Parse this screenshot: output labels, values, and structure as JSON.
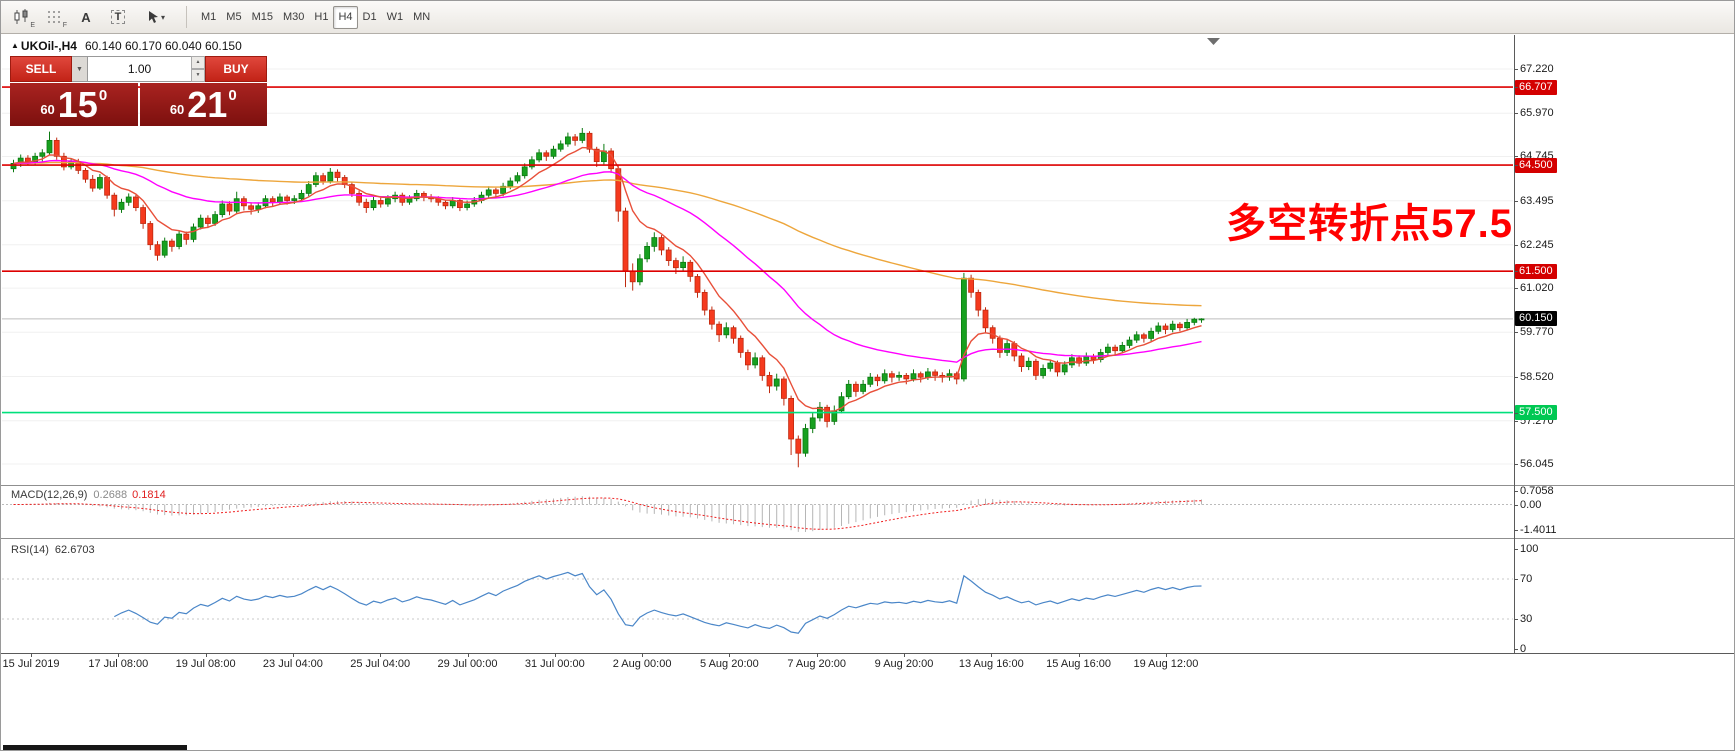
{
  "toolbar": {
    "icon_subs": [
      "E",
      "F"
    ],
    "icon_labels": {
      "text_a": "A",
      "text_t": "T",
      "caret": "▾"
    },
    "timeframes": [
      {
        "label": "M1",
        "active": false
      },
      {
        "label": "M5",
        "active": false
      },
      {
        "label": "M15",
        "active": false
      },
      {
        "label": "M30",
        "active": false
      },
      {
        "label": "H1",
        "active": false
      },
      {
        "label": "H4",
        "active": true
      },
      {
        "label": "D1",
        "active": false
      },
      {
        "label": "W1",
        "active": false
      },
      {
        "label": "MN",
        "active": false
      }
    ]
  },
  "header": {
    "marker": "▲",
    "symbol": "UKOil-,H4",
    "ohlc": "60.140 60.170 60.040 60.150"
  },
  "trade_panel": {
    "sell_label": "SELL",
    "buy_label": "BUY",
    "volume": "1.00",
    "dropdown_glyph": "▼",
    "spin_up": "▲",
    "spin_down": "▼",
    "sell_price": {
      "small": "60",
      "big": "15",
      "sup": "0"
    },
    "buy_price": {
      "small": "60",
      "big": "21",
      "sup": "0"
    }
  },
  "annotation": {
    "text": "多空转折点57.5",
    "color": "#ff0000"
  },
  "chart_data": {
    "type": "candlestick",
    "symbol": "UKOil-",
    "timeframe": "H4",
    "last_ohlc": {
      "open": 60.14,
      "high": 60.17,
      "low": 60.04,
      "close": 60.15
    },
    "y_axis_labels": [
      "67.220",
      "65.970",
      "64.745",
      "63.495",
      "62.245",
      "61.020",
      "59.770",
      "58.520",
      "57.270",
      "56.045"
    ],
    "price_lines": [
      {
        "value": 66.707,
        "label": "66.707",
        "color": "#dd0000",
        "badge": "#d40000"
      },
      {
        "value": 64.5,
        "label": "64.500",
        "color": "#dd0000",
        "badge": "#d40000"
      },
      {
        "value": 61.5,
        "label": "61.500",
        "color": "#dd0000",
        "badge": "#d40000"
      },
      {
        "value": 57.5,
        "label": "57.500",
        "color": "#00e07c",
        "badge": "#00c853"
      }
    ],
    "current_price": {
      "value": 60.15,
      "label": "60.150",
      "line_color": "#bdbdbd",
      "badge": "#000000"
    },
    "x_labels": [
      "15 Jul 2019",
      "17 Jul 08:00",
      "19 Jul 08:00",
      "23 Jul 04:00",
      "25 Jul 04:00",
      "29 Jul 00:00",
      "31 Jul 00:00",
      "2 Aug 00:00",
      "5 Aug 20:00",
      "7 Aug 20:00",
      "9 Aug 20:00",
      "13 Aug 16:00",
      "15 Aug 16:00",
      "19 Aug 12:00"
    ],
    "moving_averages": [
      {
        "period": 120,
        "color": "#eda63c"
      },
      {
        "period": 34,
        "color": "#ff00ff"
      },
      {
        "period": 8,
        "color": "#e8503a"
      }
    ],
    "candle_colors": {
      "up": "#17a01f",
      "up_stroke": "#0b7a11",
      "down": "#f53a1e",
      "down_stroke": "#bf2a10"
    },
    "macd": {
      "label": "MACD(12,26,9)",
      "value_main": "0.2688",
      "value_signal": "0.1814",
      "params": [
        12,
        26,
        9
      ],
      "axis_labels": [
        {
          "value": 0.7058,
          "label": "0.7058"
        },
        {
          "value": 0,
          "label": "0.00"
        },
        {
          "value": -1.4011,
          "label": "-1.4011"
        }
      ],
      "histogram_color": "#b6b6b6",
      "signal_color": "#f01e1e"
    },
    "rsi": {
      "label": "RSI(14)",
      "value": "62.6703",
      "period": 14,
      "axis_labels": [
        {
          "value": 100,
          "label": "100"
        },
        {
          "value": 70,
          "label": "70"
        },
        {
          "value": 30,
          "label": "30"
        },
        {
          "value": 0,
          "label": "0"
        }
      ],
      "levels": [
        70,
        30
      ],
      "color": "#4a86c8"
    },
    "candles": [
      [
        64.4,
        64.65,
        64.3,
        64.55
      ],
      [
        64.55,
        64.8,
        64.45,
        64.7
      ],
      [
        64.7,
        64.78,
        64.5,
        64.6
      ],
      [
        64.6,
        64.85,
        64.52,
        64.75
      ],
      [
        64.75,
        64.95,
        64.6,
        64.85
      ],
      [
        64.85,
        65.45,
        64.8,
        65.2
      ],
      [
        65.2,
        65.28,
        64.65,
        64.75
      ],
      [
        64.75,
        64.85,
        64.35,
        64.45
      ],
      [
        64.45,
        64.7,
        64.38,
        64.6
      ],
      [
        64.6,
        64.68,
        64.25,
        64.35
      ],
      [
        64.35,
        64.42,
        64.0,
        64.1
      ],
      [
        64.1,
        64.22,
        63.75,
        63.85
      ],
      [
        63.85,
        64.25,
        63.8,
        64.15
      ],
      [
        64.15,
        64.2,
        63.55,
        63.65
      ],
      [
        63.65,
        63.72,
        63.05,
        63.25
      ],
      [
        63.25,
        63.55,
        63.15,
        63.45
      ],
      [
        63.45,
        63.7,
        63.35,
        63.6
      ],
      [
        63.6,
        63.66,
        63.2,
        63.3
      ],
      [
        63.3,
        63.38,
        62.7,
        62.85
      ],
      [
        62.85,
        62.92,
        62.1,
        62.25
      ],
      [
        62.25,
        62.35,
        61.8,
        61.95
      ],
      [
        61.95,
        62.45,
        61.88,
        62.35
      ],
      [
        62.35,
        62.42,
        62.05,
        62.2
      ],
      [
        62.2,
        62.65,
        62.12,
        62.55
      ],
      [
        62.55,
        62.62,
        62.25,
        62.4
      ],
      [
        62.4,
        62.85,
        62.32,
        62.75
      ],
      [
        62.75,
        63.1,
        62.68,
        63.0
      ],
      [
        63.0,
        63.08,
        62.72,
        62.85
      ],
      [
        62.85,
        63.2,
        62.78,
        63.1
      ],
      [
        63.1,
        63.5,
        63.02,
        63.4
      ],
      [
        63.4,
        63.48,
        63.08,
        63.2
      ],
      [
        63.2,
        63.75,
        63.12,
        63.55
      ],
      [
        63.55,
        63.62,
        63.22,
        63.35
      ],
      [
        63.35,
        63.45,
        63.1,
        63.25
      ],
      [
        63.25,
        63.45,
        63.15,
        63.35
      ],
      [
        63.35,
        63.65,
        63.28,
        63.55
      ],
      [
        63.55,
        63.62,
        63.32,
        63.45
      ],
      [
        63.45,
        63.7,
        63.38,
        63.6
      ],
      [
        63.6,
        63.66,
        63.38,
        63.5
      ],
      [
        63.5,
        63.65,
        63.4,
        63.55
      ],
      [
        63.55,
        63.8,
        63.48,
        63.7
      ],
      [
        63.7,
        64.05,
        63.62,
        63.95
      ],
      [
        63.95,
        64.3,
        63.88,
        64.2
      ],
      [
        64.2,
        64.28,
        63.95,
        64.05
      ],
      [
        64.05,
        64.42,
        63.98,
        64.3
      ],
      [
        64.3,
        64.38,
        64.02,
        64.15
      ],
      [
        64.15,
        64.22,
        63.85,
        63.95
      ],
      [
        63.95,
        64.02,
        63.6,
        63.7
      ],
      [
        63.7,
        63.78,
        63.35,
        63.45
      ],
      [
        63.45,
        63.55,
        63.15,
        63.3
      ],
      [
        63.3,
        63.6,
        63.22,
        63.5
      ],
      [
        63.5,
        63.58,
        63.3,
        63.4
      ],
      [
        63.4,
        63.65,
        63.32,
        63.55
      ],
      [
        63.55,
        63.75,
        63.45,
        63.65
      ],
      [
        63.65,
        63.72,
        63.35,
        63.45
      ],
      [
        63.45,
        63.65,
        63.38,
        63.55
      ],
      [
        63.55,
        63.8,
        63.48,
        63.7
      ],
      [
        63.7,
        63.76,
        63.48,
        63.6
      ],
      [
        63.6,
        63.68,
        63.45,
        63.55
      ],
      [
        63.55,
        63.62,
        63.35,
        63.45
      ],
      [
        63.45,
        63.52,
        63.25,
        63.35
      ],
      [
        63.35,
        63.6,
        63.28,
        63.5
      ],
      [
        63.5,
        63.56,
        63.2,
        63.3
      ],
      [
        63.3,
        63.5,
        63.22,
        63.4
      ],
      [
        63.4,
        63.6,
        63.32,
        63.5
      ],
      [
        63.5,
        63.75,
        63.42,
        63.65
      ],
      [
        63.65,
        63.9,
        63.58,
        63.8
      ],
      [
        63.8,
        63.86,
        63.58,
        63.7
      ],
      [
        63.7,
        64.0,
        63.62,
        63.9
      ],
      [
        63.9,
        64.15,
        63.82,
        64.05
      ],
      [
        64.05,
        64.3,
        63.98,
        64.2
      ],
      [
        64.2,
        64.55,
        64.12,
        64.45
      ],
      [
        64.45,
        64.75,
        64.38,
        64.65
      ],
      [
        64.65,
        64.95,
        64.58,
        64.85
      ],
      [
        64.85,
        64.92,
        64.62,
        64.75
      ],
      [
        64.75,
        65.05,
        64.68,
        64.95
      ],
      [
        64.95,
        65.2,
        64.88,
        65.1
      ],
      [
        65.1,
        65.42,
        65.02,
        65.3
      ],
      [
        65.3,
        65.38,
        65.05,
        65.2
      ],
      [
        65.2,
        65.55,
        65.12,
        65.4
      ],
      [
        65.4,
        65.46,
        64.85,
        64.95
      ],
      [
        64.95,
        65.02,
        64.45,
        64.6
      ],
      [
        64.6,
        65.1,
        64.52,
        64.9
      ],
      [
        64.9,
        64.98,
        64.28,
        64.4
      ],
      [
        64.4,
        64.48,
        62.9,
        63.2
      ],
      [
        63.2,
        63.3,
        61.05,
        61.5
      ],
      [
        61.5,
        61.72,
        60.95,
        61.2
      ],
      [
        61.2,
        61.98,
        61.1,
        61.85
      ],
      [
        61.85,
        62.32,
        61.75,
        62.2
      ],
      [
        62.2,
        62.6,
        62.05,
        62.45
      ],
      [
        62.45,
        62.52,
        61.95,
        62.1
      ],
      [
        62.1,
        62.18,
        61.65,
        61.8
      ],
      [
        61.8,
        61.88,
        61.42,
        61.6
      ],
      [
        61.6,
        61.92,
        61.5,
        61.75
      ],
      [
        61.75,
        61.82,
        61.2,
        61.35
      ],
      [
        61.35,
        61.42,
        60.75,
        60.9
      ],
      [
        60.9,
        60.98,
        60.25,
        60.4
      ],
      [
        60.4,
        60.5,
        59.85,
        60.0
      ],
      [
        60.0,
        60.08,
        59.5,
        59.7
      ],
      [
        59.7,
        60.05,
        59.6,
        59.9
      ],
      [
        59.9,
        59.96,
        59.45,
        59.6
      ],
      [
        59.6,
        59.68,
        59.05,
        59.2
      ],
      [
        59.2,
        59.28,
        58.7,
        58.85
      ],
      [
        58.85,
        59.2,
        58.75,
        59.05
      ],
      [
        59.05,
        59.12,
        58.4,
        58.55
      ],
      [
        58.55,
        58.65,
        58.05,
        58.25
      ],
      [
        58.25,
        58.6,
        58.12,
        58.45
      ],
      [
        58.45,
        58.52,
        57.7,
        57.9
      ],
      [
        57.9,
        57.98,
        56.3,
        56.75
      ],
      [
        56.75,
        56.85,
        55.95,
        56.35
      ],
      [
        56.35,
        57.18,
        56.25,
        57.05
      ],
      [
        57.05,
        57.5,
        56.92,
        57.35
      ],
      [
        57.35,
        57.8,
        57.25,
        57.65
      ],
      [
        57.65,
        57.72,
        57.08,
        57.25
      ],
      [
        57.25,
        57.7,
        57.15,
        57.55
      ],
      [
        57.55,
        58.08,
        57.48,
        57.95
      ],
      [
        57.95,
        58.42,
        57.88,
        58.3
      ],
      [
        58.3,
        58.38,
        57.95,
        58.1
      ],
      [
        58.1,
        58.42,
        58.02,
        58.3
      ],
      [
        58.3,
        58.62,
        58.22,
        58.5
      ],
      [
        58.5,
        58.58,
        58.25,
        58.4
      ],
      [
        58.4,
        58.72,
        58.32,
        58.6
      ],
      [
        58.6,
        58.68,
        58.35,
        58.5
      ],
      [
        58.5,
        58.66,
        58.4,
        58.55
      ],
      [
        58.55,
        58.62,
        58.3,
        58.45
      ],
      [
        58.45,
        58.72,
        58.38,
        58.6
      ],
      [
        58.6,
        58.66,
        58.35,
        58.5
      ],
      [
        58.5,
        58.76,
        58.42,
        58.65
      ],
      [
        58.65,
        58.72,
        58.4,
        58.55
      ],
      [
        58.55,
        58.64,
        58.35,
        58.5
      ],
      [
        58.5,
        58.72,
        58.4,
        58.6
      ],
      [
        58.6,
        58.66,
        58.3,
        58.45
      ],
      [
        58.45,
        61.45,
        58.38,
        61.3
      ],
      [
        61.3,
        61.4,
        60.75,
        60.9
      ],
      [
        60.9,
        60.98,
        60.22,
        60.4
      ],
      [
        60.4,
        60.48,
        59.75,
        59.9
      ],
      [
        59.9,
        59.97,
        59.45,
        59.6
      ],
      [
        59.6,
        59.68,
        59.05,
        59.2
      ],
      [
        59.2,
        59.55,
        59.1,
        59.45
      ],
      [
        59.45,
        59.52,
        58.95,
        59.1
      ],
      [
        59.1,
        59.18,
        58.65,
        58.8
      ],
      [
        58.8,
        59.06,
        58.7,
        58.95
      ],
      [
        58.95,
        59.02,
        58.42,
        58.55
      ],
      [
        58.55,
        58.86,
        58.46,
        58.75
      ],
      [
        58.75,
        59.0,
        58.66,
        58.9
      ],
      [
        58.9,
        58.97,
        58.52,
        58.65
      ],
      [
        58.65,
        58.95,
        58.56,
        58.85
      ],
      [
        58.85,
        59.15,
        58.76,
        59.05
      ],
      [
        59.05,
        59.12,
        58.8,
        58.9
      ],
      [
        58.9,
        59.2,
        58.82,
        59.1
      ],
      [
        59.1,
        59.16,
        58.88,
        59.0
      ],
      [
        59.0,
        59.3,
        58.92,
        59.2
      ],
      [
        59.2,
        59.45,
        59.12,
        59.35
      ],
      [
        59.35,
        59.42,
        59.12,
        59.25
      ],
      [
        59.25,
        59.5,
        59.17,
        59.4
      ],
      [
        59.4,
        59.65,
        59.32,
        59.55
      ],
      [
        59.55,
        59.8,
        59.47,
        59.7
      ],
      [
        59.7,
        59.76,
        59.48,
        59.6
      ],
      [
        59.6,
        59.9,
        59.52,
        59.8
      ],
      [
        59.8,
        60.05,
        59.72,
        59.95
      ],
      [
        59.95,
        60.02,
        59.72,
        59.85
      ],
      [
        59.85,
        60.1,
        59.77,
        60.0
      ],
      [
        60.0,
        60.06,
        59.8,
        59.9
      ],
      [
        59.9,
        60.15,
        59.82,
        60.05
      ],
      [
        60.05,
        60.18,
        59.97,
        60.14
      ],
      [
        60.14,
        60.17,
        60.04,
        60.15
      ]
    ]
  }
}
